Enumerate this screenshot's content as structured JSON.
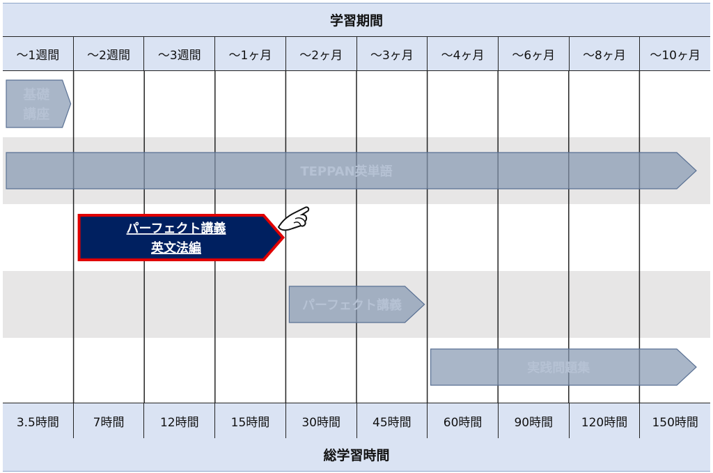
{
  "title": "学習期間",
  "footer": "総学習時間",
  "periods": [
    "～1週間",
    "～2週間",
    "～3週間",
    "～1ヶ月",
    "～2ヶ月",
    "～3ヶ月",
    "～4ヶ月",
    "～6ヶ月",
    "～8ヶ月",
    "～10ヶ月"
  ],
  "hours": [
    "3.5時間",
    "7時間",
    "12時間",
    "15時間",
    "30時間",
    "45時間",
    "60時間",
    "90時間",
    "120時間",
    "150時間"
  ],
  "courses": [
    {
      "label_lines": [
        "基礎",
        "講座"
      ],
      "start_col": 0,
      "end_col": 1,
      "highlighted": false
    },
    {
      "label_lines": [
        "TEPPAN英単語"
      ],
      "start_col": 0,
      "end_col": 10,
      "highlighted": false
    },
    {
      "label_lines": [
        "パーフェクト講義",
        "英文法編"
      ],
      "start_col": 1,
      "end_col": 4,
      "highlighted": true
    },
    {
      "label_lines": [
        "パーフェクト講義"
      ],
      "start_col": 4,
      "end_col": 6,
      "highlighted": false
    },
    {
      "label_lines": [
        "実践問題集"
      ],
      "start_col": 6,
      "end_col": 10,
      "highlighted": false
    }
  ],
  "pointer_icon": "pointing-hand-icon",
  "colors": {
    "header_bg": "#dae3f3",
    "band_gray": "#e7e6e6",
    "bar_fill": "#8497b0",
    "highlight_fill": "#002060",
    "highlight_border": "#e00000"
  }
}
